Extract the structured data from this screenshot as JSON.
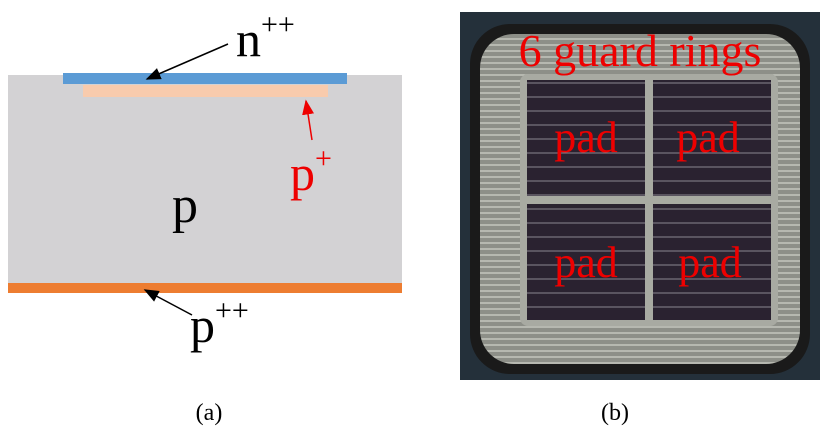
{
  "panel_a": {
    "top_label": {
      "base": "n",
      "sup": "++"
    },
    "implant_label": {
      "base": "p",
      "sup": "+"
    },
    "bulk_label": "p",
    "bottom_label": {
      "base": "p",
      "sup": "++"
    },
    "caption": "(a)"
  },
  "panel_b": {
    "title": "6 guard rings",
    "pads": [
      "pad",
      "pad",
      "pad",
      "pad"
    ],
    "caption": "(b)"
  }
}
